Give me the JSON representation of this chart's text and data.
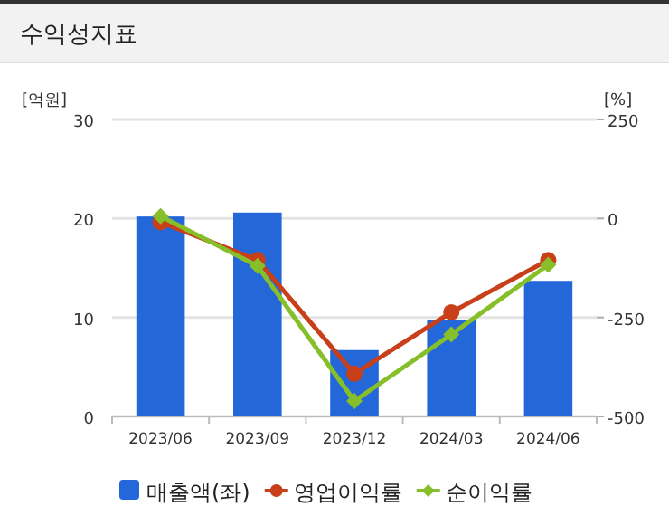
{
  "chart_data": {
    "type": "bar",
    "title": "수익성지표",
    "ylabel": "[억원]",
    "y2label": "[%]",
    "categories": [
      "2023/06",
      "2023/09",
      "2023/12",
      "2024/03",
      "2024/06"
    ],
    "series": [
      {
        "name": "매출액(좌)",
        "color": "#2367d9",
        "values": [
          20.2,
          20.6,
          6.7,
          9.7,
          13.7
        ]
      },
      {
        "name": "영업이익률",
        "type": "line",
        "axis": "y2",
        "marker": "circle",
        "color": "#c8401a",
        "values": [
          -9,
          -105,
          -392,
          -237,
          -105
        ]
      },
      {
        "name": "순이익률",
        "type": "line",
        "axis": "y2",
        "marker": "diamond",
        "color": "#86bf2a",
        "values": [
          6,
          -120,
          -461,
          -293,
          -117
        ]
      }
    ],
    "ylim": [
      0,
      30
    ],
    "yticks": [
      0,
      10,
      20,
      30
    ],
    "y2lim": [
      -500,
      250
    ],
    "y2ticks": [
      -500,
      -250,
      0,
      250
    ],
    "grid": "y",
    "legend": "bottom"
  }
}
